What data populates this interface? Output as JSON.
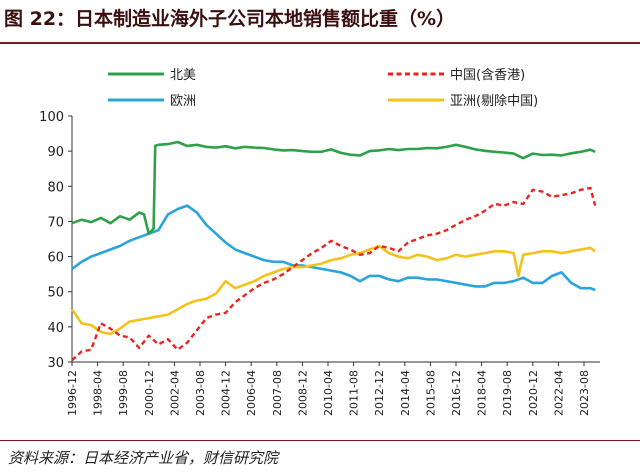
{
  "header": {
    "title": "图 22：日本制造业海外子公司本地销售额比重（%）"
  },
  "footer": {
    "source": "资料来源：日本经济产业省，财信研究院"
  },
  "colors": {
    "north_america": "#2ea04a",
    "china": "#e8251e",
    "europe": "#2aa4dc",
    "asia_ex_china": "#f5c21b",
    "title_rule": "#7a1a1a"
  },
  "chart_data": {
    "type": "line",
    "title": "图 22：日本制造业海外子公司本地销售额比重（%）",
    "xlabel": "",
    "ylabel": "",
    "ylim": [
      30,
      100
    ],
    "yticks": [
      30,
      40,
      50,
      60,
      70,
      80,
      90,
      100
    ],
    "xlim": [
      "1996-12",
      "2024-06"
    ],
    "xticks": [
      "1996-12",
      "1998-04",
      "1999-08",
      "2000-12",
      "2002-04",
      "2003-08",
      "2004-12",
      "2006-04",
      "2007-08",
      "2008-12",
      "2010-04",
      "2011-08",
      "2012-12",
      "2014-04",
      "2015-08",
      "2016-12",
      "2018-04",
      "2019-08",
      "2020-12",
      "2022-04",
      "2023-08"
    ],
    "grid": false,
    "legend_position": "top",
    "series": [
      {
        "name": "北美",
        "color": "#2ea04a",
        "dash": "solid",
        "x": [
          "1996-12",
          "1997-06",
          "1997-12",
          "1998-06",
          "1998-12",
          "1999-06",
          "1999-12",
          "2000-06",
          "2000-09",
          "2000-12",
          "2001-03",
          "2001-04",
          "2001-06",
          "2001-12",
          "2002-06",
          "2002-12",
          "2003-06",
          "2003-12",
          "2004-06",
          "2004-12",
          "2005-06",
          "2005-12",
          "2006-06",
          "2006-12",
          "2007-06",
          "2007-12",
          "2008-06",
          "2008-12",
          "2009-06",
          "2009-12",
          "2010-06",
          "2010-12",
          "2011-06",
          "2011-12",
          "2012-06",
          "2012-12",
          "2013-06",
          "2013-12",
          "2014-06",
          "2014-12",
          "2015-06",
          "2015-12",
          "2016-06",
          "2016-12",
          "2017-06",
          "2017-12",
          "2018-06",
          "2018-12",
          "2019-06",
          "2019-12",
          "2020-06",
          "2020-12",
          "2021-06",
          "2021-12",
          "2022-06",
          "2022-12",
          "2023-06",
          "2023-12",
          "2024-03"
        ],
        "values": [
          69.5,
          70.5,
          69.8,
          71.0,
          69.5,
          71.5,
          70.5,
          72.5,
          72.0,
          66.5,
          68.0,
          91.5,
          91.8,
          92.0,
          92.6,
          91.5,
          91.8,
          91.2,
          91.0,
          91.4,
          90.8,
          91.2,
          91.0,
          90.9,
          90.5,
          90.2,
          90.3,
          90.0,
          89.8,
          89.8,
          90.5,
          89.5,
          89.0,
          88.8,
          90.0,
          90.2,
          90.6,
          90.3,
          90.6,
          90.6,
          90.9,
          90.8,
          91.2,
          91.8,
          91.2,
          90.5,
          90.1,
          89.8,
          89.6,
          89.3,
          88.0,
          89.3,
          88.9,
          89.0,
          88.8,
          89.4,
          89.8,
          90.4,
          89.8
        ]
      },
      {
        "name": "中国(含香港)",
        "color": "#e8251e",
        "dash": "dashed",
        "x": [
          "1996-12",
          "1997-06",
          "1997-12",
          "1998-06",
          "1998-12",
          "1999-06",
          "1999-12",
          "2000-06",
          "2000-12",
          "2001-06",
          "2001-12",
          "2002-06",
          "2002-12",
          "2003-06",
          "2003-12",
          "2004-06",
          "2004-12",
          "2005-06",
          "2005-12",
          "2006-06",
          "2006-12",
          "2007-06",
          "2007-12",
          "2008-06",
          "2008-12",
          "2009-06",
          "2009-12",
          "2010-06",
          "2010-12",
          "2011-06",
          "2011-12",
          "2012-06",
          "2012-12",
          "2013-06",
          "2013-12",
          "2014-06",
          "2014-12",
          "2015-06",
          "2015-12",
          "2016-06",
          "2016-12",
          "2017-06",
          "2017-12",
          "2018-06",
          "2018-12",
          "2019-06",
          "2019-12",
          "2020-06",
          "2020-12",
          "2021-06",
          "2021-12",
          "2022-06",
          "2022-12",
          "2023-06",
          "2023-12",
          "2024-03"
        ],
        "values": [
          30.5,
          33.0,
          33.5,
          41.0,
          39.5,
          37.5,
          37.0,
          34.0,
          37.5,
          35.0,
          36.5,
          33.5,
          35.5,
          39.0,
          42.5,
          43.5,
          44.0,
          47.0,
          49.0,
          51.0,
          52.5,
          53.5,
          55.0,
          57.0,
          59.0,
          61.0,
          62.5,
          64.5,
          63.0,
          62.0,
          60.5,
          61.0,
          63.0,
          62.5,
          61.5,
          64.0,
          65.0,
          66.0,
          66.5,
          67.5,
          69.0,
          70.5,
          71.5,
          73.0,
          75.0,
          74.5,
          75.5,
          75.0,
          79.0,
          78.5,
          77.0,
          77.5,
          78.0,
          79.0,
          79.5,
          74.5
        ]
      },
      {
        "name": "欧洲",
        "color": "#2aa4dc",
        "dash": "solid",
        "x": [
          "1996-12",
          "1997-06",
          "1997-12",
          "1998-06",
          "1998-12",
          "1999-06",
          "1999-12",
          "2000-06",
          "2000-12",
          "2001-06",
          "2001-12",
          "2002-06",
          "2002-12",
          "2003-06",
          "2003-12",
          "2004-06",
          "2004-12",
          "2005-06",
          "2005-12",
          "2006-06",
          "2006-12",
          "2007-06",
          "2007-12",
          "2008-06",
          "2008-12",
          "2009-06",
          "2009-12",
          "2010-06",
          "2010-12",
          "2011-06",
          "2011-12",
          "2012-06",
          "2012-12",
          "2013-06",
          "2013-12",
          "2014-06",
          "2014-12",
          "2015-06",
          "2015-12",
          "2016-06",
          "2016-12",
          "2017-06",
          "2017-12",
          "2018-06",
          "2018-12",
          "2019-06",
          "2019-12",
          "2020-06",
          "2020-12",
          "2021-06",
          "2021-12",
          "2022-06",
          "2022-12",
          "2023-06",
          "2023-12",
          "2024-03"
        ],
        "values": [
          56.5,
          58.5,
          60.0,
          61.0,
          62.0,
          63.0,
          64.5,
          65.5,
          66.5,
          67.5,
          72.0,
          73.5,
          74.5,
          72.5,
          69.0,
          66.5,
          64.0,
          62.0,
          61.0,
          60.0,
          59.0,
          58.5,
          58.5,
          57.5,
          57.5,
          57.0,
          56.5,
          56.0,
          55.5,
          54.5,
          53.0,
          54.5,
          54.5,
          53.5,
          53.0,
          54.0,
          54.0,
          53.5,
          53.5,
          53.0,
          52.5,
          52.0,
          51.5,
          51.5,
          52.5,
          52.5,
          53.0,
          54.0,
          52.5,
          52.5,
          54.5,
          55.5,
          52.5,
          51.0,
          51.0,
          50.5
        ]
      },
      {
        "name": "亚洲(剔除中国)",
        "color": "#f5c21b",
        "dash": "solid",
        "x": [
          "1996-12",
          "1997-06",
          "1997-12",
          "1998-06",
          "1998-12",
          "1999-06",
          "1999-12",
          "2000-06",
          "2000-12",
          "2001-06",
          "2001-12",
          "2002-06",
          "2002-12",
          "2003-06",
          "2003-12",
          "2004-06",
          "2004-12",
          "2005-06",
          "2005-12",
          "2006-06",
          "2006-12",
          "2007-06",
          "2007-12",
          "2008-06",
          "2008-12",
          "2009-06",
          "2009-12",
          "2010-06",
          "2010-12",
          "2011-06",
          "2011-12",
          "2012-06",
          "2012-12",
          "2013-06",
          "2013-12",
          "2014-06",
          "2014-12",
          "2015-06",
          "2015-12",
          "2016-06",
          "2016-12",
          "2017-06",
          "2017-12",
          "2018-06",
          "2018-12",
          "2019-06",
          "2019-12",
          "2020-03",
          "2020-06",
          "2020-12",
          "2021-06",
          "2021-12",
          "2022-06",
          "2022-12",
          "2023-06",
          "2023-12",
          "2024-03"
        ],
        "values": [
          45.0,
          41.0,
          40.5,
          38.5,
          38.0,
          39.5,
          41.5,
          42.0,
          42.5,
          43.0,
          43.5,
          45.0,
          46.5,
          47.5,
          48.0,
          49.5,
          53.0,
          51.0,
          52.0,
          53.0,
          54.5,
          55.5,
          56.5,
          57.0,
          57.0,
          57.5,
          58.0,
          59.0,
          59.5,
          60.5,
          61.0,
          62.0,
          63.0,
          61.0,
          60.0,
          59.5,
          60.5,
          60.0,
          59.0,
          59.5,
          60.5,
          60.0,
          60.5,
          61.0,
          61.5,
          61.5,
          61.0,
          54.5,
          60.5,
          61.0,
          61.5,
          61.5,
          61.0,
          61.5,
          62.0,
          62.5,
          61.5
        ]
      }
    ]
  }
}
